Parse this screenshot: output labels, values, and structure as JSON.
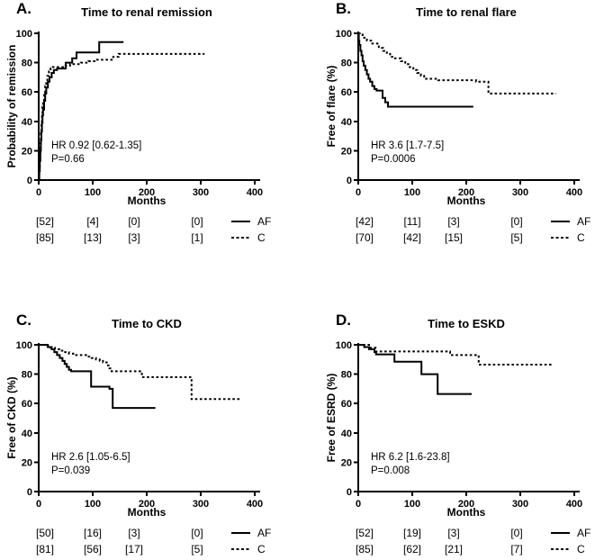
{
  "figure": {
    "background": "#ffffff",
    "ink": "#000000"
  },
  "chart_data": [
    {
      "type": "line",
      "letter": "A.",
      "title": "Time to renal remission",
      "ylabel": "Probability of remission",
      "xlabel": "Months",
      "xlim": [
        0,
        400
      ],
      "ylim": [
        0,
        100
      ],
      "xticks": [
        0,
        100,
        200,
        300,
        400
      ],
      "yticks": [
        0,
        20,
        40,
        60,
        80,
        100
      ],
      "grid": false,
      "annotation": {
        "line1": "HR 0.92 [0.62-1.35]",
        "line2": "P=0.66"
      },
      "series": [
        {
          "name": "AF",
          "style": "solid",
          "steps": [
            [
              0,
              0
            ],
            [
              1,
              6
            ],
            [
              2,
              13
            ],
            [
              3,
              20
            ],
            [
              4,
              27
            ],
            [
              5,
              33
            ],
            [
              6,
              39
            ],
            [
              7,
              44
            ],
            [
              8,
              48
            ],
            [
              10,
              54
            ],
            [
              12,
              59
            ],
            [
              14,
              63
            ],
            [
              17,
              67
            ],
            [
              20,
              70
            ],
            [
              24,
              73
            ],
            [
              28,
              75
            ],
            [
              34,
              76
            ],
            [
              50,
              80
            ],
            [
              62,
              83
            ],
            [
              70,
              87
            ],
            [
              112,
              94
            ],
            [
              157,
              94
            ]
          ]
        },
        {
          "name": "C",
          "style": "dashed",
          "steps": [
            [
              0,
              0
            ],
            [
              1,
              9
            ],
            [
              2,
              17
            ],
            [
              3,
              25
            ],
            [
              4,
              32
            ],
            [
              5,
              39
            ],
            [
              6,
              45
            ],
            [
              7,
              50
            ],
            [
              8,
              54
            ],
            [
              10,
              60
            ],
            [
              12,
              64
            ],
            [
              14,
              68
            ],
            [
              16,
              71
            ],
            [
              19,
              74
            ],
            [
              22,
              76
            ],
            [
              26,
              77
            ],
            [
              45,
              78
            ],
            [
              58,
              79
            ],
            [
              78,
              80
            ],
            [
              92,
              81
            ],
            [
              108,
              82
            ],
            [
              138,
              84
            ],
            [
              148,
              86
            ],
            [
              307,
              86
            ]
          ]
        }
      ],
      "at_risk": [
        {
          "label": "AF",
          "line": "solid",
          "counts": [
            "[52]",
            "[4]",
            "[0]",
            "[0]"
          ]
        },
        {
          "label": "C",
          "line": "dashed",
          "counts": [
            "[85]",
            "[13]",
            "[3]",
            "[1]"
          ]
        }
      ]
    },
    {
      "type": "line",
      "letter": "B.",
      "title": "Time to renal flare",
      "ylabel": "Free of flare (%)",
      "xlabel": "Months",
      "xlim": [
        0,
        400
      ],
      "ylim": [
        0,
        100
      ],
      "xticks": [
        0,
        100,
        200,
        300,
        400
      ],
      "yticks": [
        0,
        20,
        40,
        60,
        80,
        100
      ],
      "grid": false,
      "annotation": {
        "line1": "HR 3.6 [1.7-7.5]",
        "line2": "P=0.0006"
      },
      "series": [
        {
          "name": "AF",
          "style": "solid",
          "steps": [
            [
              0,
              100
            ],
            [
              1,
              95
            ],
            [
              2,
              92
            ],
            [
              4,
              88
            ],
            [
              6,
              85
            ],
            [
              8,
              81
            ],
            [
              10,
              78
            ],
            [
              13,
              75
            ],
            [
              16,
              72
            ],
            [
              19,
              69
            ],
            [
              22,
              67
            ],
            [
              26,
              64
            ],
            [
              30,
              62
            ],
            [
              34,
              61
            ],
            [
              45,
              56
            ],
            [
              50,
              53
            ],
            [
              55,
              50
            ],
            [
              213,
              50
            ]
          ]
        },
        {
          "name": "C",
          "style": "dashed",
          "steps": [
            [
              0,
              100
            ],
            [
              8,
              97
            ],
            [
              16,
              95
            ],
            [
              26,
              93
            ],
            [
              38,
              90
            ],
            [
              46,
              88
            ],
            [
              53,
              86
            ],
            [
              59,
              84
            ],
            [
              66,
              83
            ],
            [
              79,
              81
            ],
            [
              87,
              79
            ],
            [
              95,
              77
            ],
            [
              102,
              75
            ],
            [
              109,
              73
            ],
            [
              116,
              71
            ],
            [
              122,
              69
            ],
            [
              148,
              68
            ],
            [
              218,
              67
            ],
            [
              241,
              59
            ],
            [
              366,
              59
            ]
          ]
        }
      ],
      "at_risk": [
        {
          "label": "AF",
          "line": "solid",
          "counts": [
            "[42]",
            "[11]",
            "[3]",
            "[0]"
          ]
        },
        {
          "label": "C",
          "line": "dashed",
          "counts": [
            "[70]",
            "[42]",
            "[15]",
            "[5]"
          ]
        }
      ]
    },
    {
      "type": "line",
      "letter": "C.",
      "title": "Time to CKD",
      "ylabel": "Free of CKD (%)",
      "xlabel": "Months",
      "xlim": [
        0,
        400
      ],
      "ylim": [
        0,
        100
      ],
      "xticks": [
        0,
        100,
        200,
        300,
        400
      ],
      "yticks": [
        0,
        20,
        40,
        60,
        80,
        100
      ],
      "grid": false,
      "annotation": {
        "line1": "HR 2.6 [1.05-6.5]",
        "line2": "P=0.039"
      },
      "series": [
        {
          "name": "AF",
          "style": "solid",
          "steps": [
            [
              0,
              100
            ],
            [
              17,
              98.5
            ],
            [
              24,
              97
            ],
            [
              29,
              95
            ],
            [
              34,
              93
            ],
            [
              39,
              91
            ],
            [
              44,
              89
            ],
            [
              48,
              87
            ],
            [
              52,
              85
            ],
            [
              56,
              83
            ],
            [
              60,
              82
            ],
            [
              97,
              71.5
            ],
            [
              131,
              70
            ],
            [
              137,
              57
            ],
            [
              216,
              57
            ]
          ]
        },
        {
          "name": "C",
          "style": "dashed",
          "steps": [
            [
              0,
              100
            ],
            [
              14,
              99
            ],
            [
              22,
              98
            ],
            [
              30,
              97
            ],
            [
              38,
              96
            ],
            [
              46,
              95
            ],
            [
              56,
              94
            ],
            [
              64,
              93
            ],
            [
              90,
              92
            ],
            [
              98,
              91
            ],
            [
              106,
              90
            ],
            [
              113,
              89
            ],
            [
              119,
              88
            ],
            [
              126,
              86
            ],
            [
              131,
              84
            ],
            [
              135,
              82
            ],
            [
              191,
              78
            ],
            [
              283,
              63
            ],
            [
              373,
              63
            ]
          ]
        }
      ],
      "at_risk": [
        {
          "label": "AF",
          "line": "solid",
          "counts": [
            "[50]",
            "[16]",
            "[3]",
            "[0]"
          ]
        },
        {
          "label": "C",
          "line": "dashed",
          "counts": [
            "[81]",
            "[56]",
            "[17]",
            "[5]"
          ]
        }
      ]
    },
    {
      "type": "line",
      "letter": "D.",
      "title": "Time to ESKD",
      "ylabel": "Free of ESRD (%)",
      "xlabel": "Months",
      "xlim": [
        0,
        400
      ],
      "ylim": [
        0,
        100
      ],
      "xticks": [
        0,
        100,
        200,
        300,
        400
      ],
      "yticks": [
        0,
        20,
        40,
        60,
        80,
        100
      ],
      "grid": false,
      "annotation": {
        "line1": "HR 6.2 [1.6-23.8]",
        "line2": "P=0.008"
      },
      "series": [
        {
          "name": "AF",
          "style": "solid",
          "steps": [
            [
              0,
              100
            ],
            [
              11,
              98.5
            ],
            [
              20,
              97
            ],
            [
              30,
              95
            ],
            [
              33,
              93.5
            ],
            [
              67,
              88.5
            ],
            [
              117,
              80
            ],
            [
              147,
              66.5
            ],
            [
              210,
              66.5
            ]
          ]
        },
        {
          "name": "C",
          "style": "dashed",
          "steps": [
            [
              0,
              100
            ],
            [
              20,
              98
            ],
            [
              32,
              95.5
            ],
            [
              170,
              93
            ],
            [
              223,
              86.5
            ],
            [
              362,
              86.5
            ]
          ]
        }
      ],
      "at_risk": [
        {
          "label": "AF",
          "line": "solid",
          "counts": [
            "[52]",
            "[19]",
            "[3]",
            "[0]"
          ]
        },
        {
          "label": "C",
          "line": "dashed",
          "counts": [
            "[85]",
            "[62]",
            "[21]",
            "[7]"
          ]
        }
      ]
    }
  ]
}
